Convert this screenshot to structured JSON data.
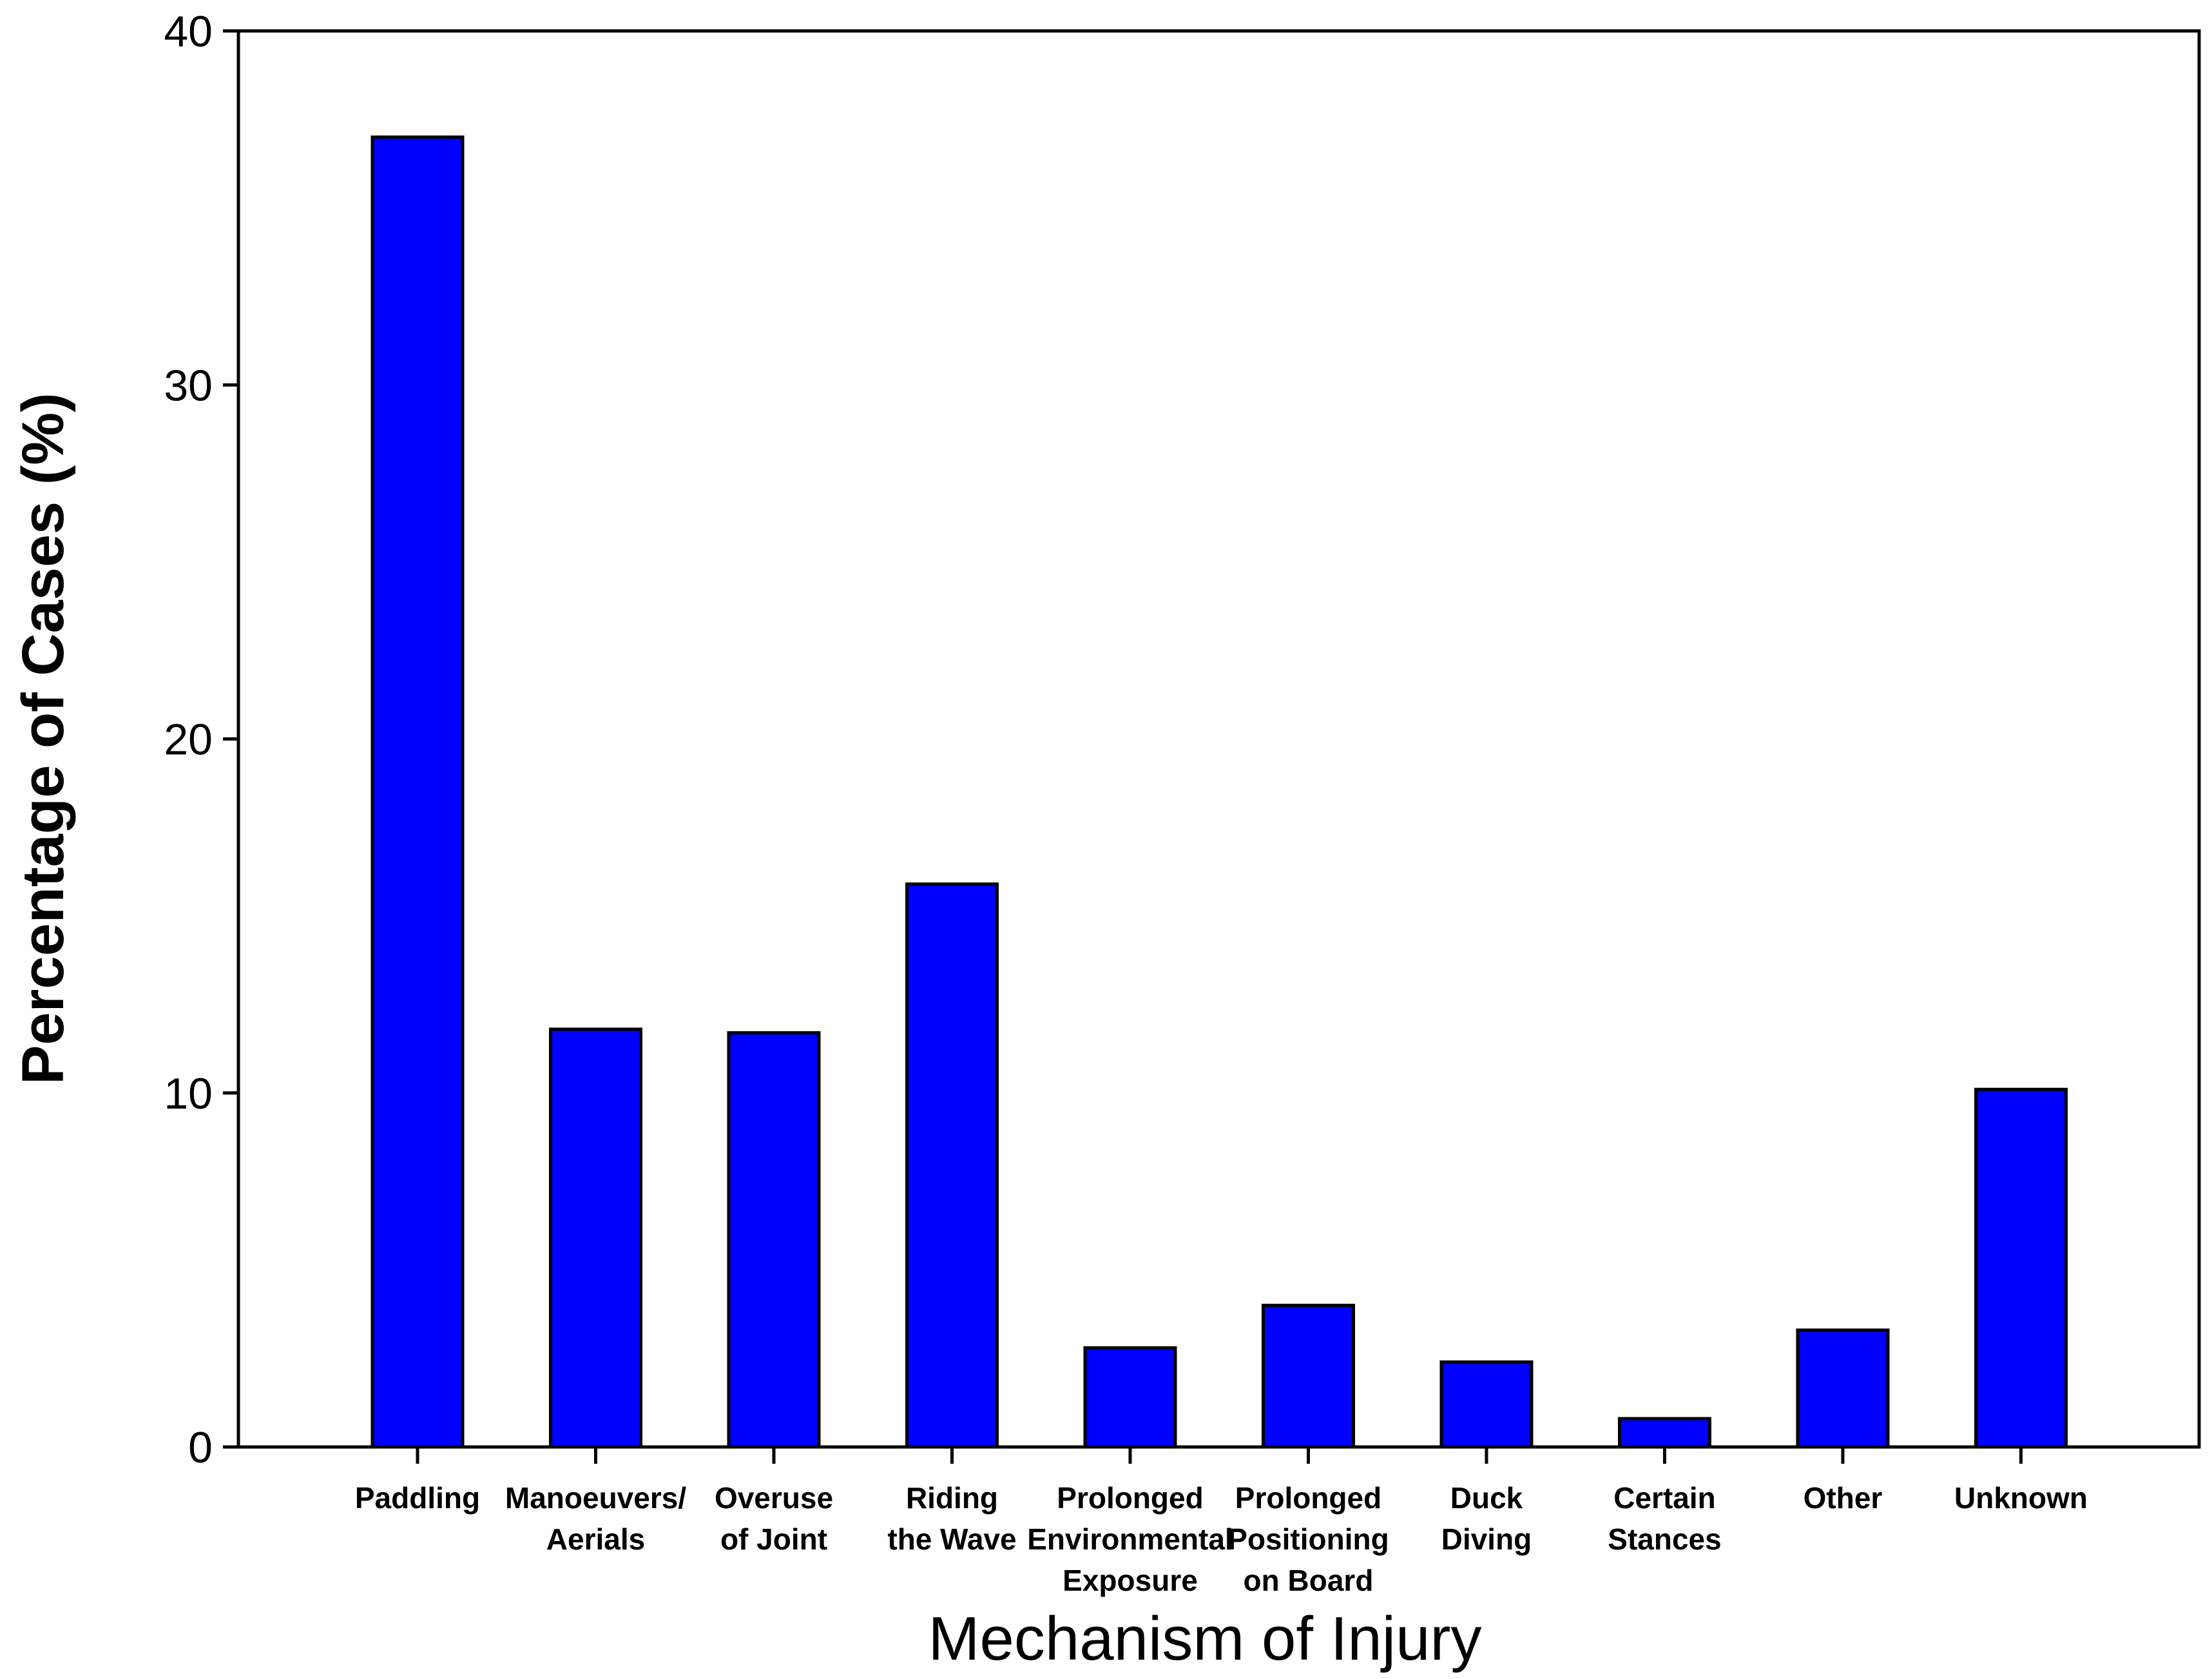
{
  "chart_data": {
    "type": "bar",
    "categories": [
      [
        "Paddling"
      ],
      [
        "Manoeuvers/",
        "Aerials"
      ],
      [
        "Overuse",
        "of Joint"
      ],
      [
        "Riding",
        "the Wave"
      ],
      [
        "Prolonged",
        "Environmental",
        "Exposure"
      ],
      [
        "Prolonged",
        "Positioning",
        "on Board"
      ],
      [
        "Duck",
        "Diving"
      ],
      [
        "Certain",
        "Stances"
      ],
      [
        "Other"
      ],
      [
        "Unknown"
      ]
    ],
    "values": [
      37.0,
      11.8,
      11.7,
      15.9,
      2.8,
      4.0,
      2.4,
      0.8,
      3.3,
      10.1
    ],
    "title": "",
    "xlabel": "Mechanism of Injury",
    "ylabel": "Percentage of Cases (%)",
    "ylim": [
      0,
      40
    ],
    "yticks": [
      0,
      10,
      20,
      30,
      40
    ],
    "bar_color": "#0000ff",
    "outline_color": "#000000",
    "grid": false,
    "legend": "none"
  }
}
